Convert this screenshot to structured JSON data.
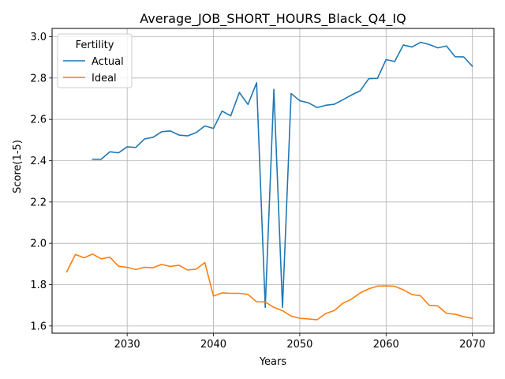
{
  "chart_data": {
    "type": "line",
    "title": "Average_JOB_SHORT_HOURS_Black_Q4_IQ",
    "xlabel": "Years",
    "ylabel": "Score(1-5)",
    "xlim": [
      2021.3,
      2072.5
    ],
    "ylim": [
      1.565,
      3.04
    ],
    "xticks": [
      2030,
      2040,
      2050,
      2060,
      2070
    ],
    "yticks": [
      1.6,
      1.8,
      2.0,
      2.2,
      2.4,
      2.6,
      2.8,
      3.0
    ],
    "ytick_labels": [
      "1.6",
      "1.8",
      "2.0",
      "2.2",
      "2.4",
      "2.6",
      "2.8",
      "3.0"
    ],
    "grid": true,
    "legend": {
      "title": "Fertility",
      "location": "upper-left"
    },
    "series": [
      {
        "name": "Actual",
        "color": "#1f77b4",
        "x": [
          2026,
          2027,
          2028,
          2029,
          2030,
          2031,
          2032,
          2033,
          2034,
          2035,
          2036,
          2037,
          2038,
          2039,
          2040,
          2041,
          2042,
          2043,
          2044,
          2045,
          2046,
          2047,
          2048,
          2049,
          2050,
          2051,
          2052,
          2053,
          2054,
          2055,
          2056,
          2057,
          2058,
          2059,
          2060,
          2061,
          2062,
          2063,
          2064,
          2065,
          2066,
          2067,
          2068,
          2069,
          2070
        ],
        "y": [
          2.407,
          2.407,
          2.443,
          2.438,
          2.467,
          2.464,
          2.505,
          2.513,
          2.54,
          2.544,
          2.524,
          2.52,
          2.536,
          2.568,
          2.556,
          2.64,
          2.617,
          2.73,
          2.672,
          2.777,
          1.69,
          2.745,
          1.69,
          2.725,
          2.69,
          2.68,
          2.657,
          2.668,
          2.673,
          2.695,
          2.718,
          2.738,
          2.797,
          2.798,
          2.889,
          2.88,
          2.96,
          2.95,
          2.973,
          2.962,
          2.946,
          2.955,
          2.903,
          2.902,
          2.857
        ]
      },
      {
        "name": "Ideal",
        "color": "#ff7f0e",
        "x": [
          2023,
          2024,
          2025,
          2026,
          2027,
          2028,
          2029,
          2030,
          2031,
          2032,
          2033,
          2034,
          2035,
          2036,
          2037,
          2038,
          2039,
          2040,
          2041,
          2042,
          2043,
          2044,
          2045,
          2046,
          2047,
          2048,
          2049,
          2050,
          2051,
          2052,
          2053,
          2054,
          2055,
          2056,
          2057,
          2058,
          2059,
          2060,
          2061,
          2062,
          2063,
          2064,
          2065,
          2066,
          2067,
          2068,
          2069,
          2070
        ],
        "y": [
          1.862,
          1.946,
          1.93,
          1.948,
          1.925,
          1.933,
          1.889,
          1.884,
          1.873,
          1.884,
          1.882,
          1.898,
          1.888,
          1.894,
          1.871,
          1.875,
          1.907,
          1.745,
          1.76,
          1.758,
          1.758,
          1.753,
          1.717,
          1.716,
          1.69,
          1.674,
          1.648,
          1.637,
          1.634,
          1.63,
          1.66,
          1.675,
          1.71,
          1.73,
          1.76,
          1.78,
          1.793,
          1.794,
          1.792,
          1.775,
          1.752,
          1.746,
          1.7,
          1.697,
          1.661,
          1.657,
          1.645,
          1.637
        ]
      }
    ]
  }
}
